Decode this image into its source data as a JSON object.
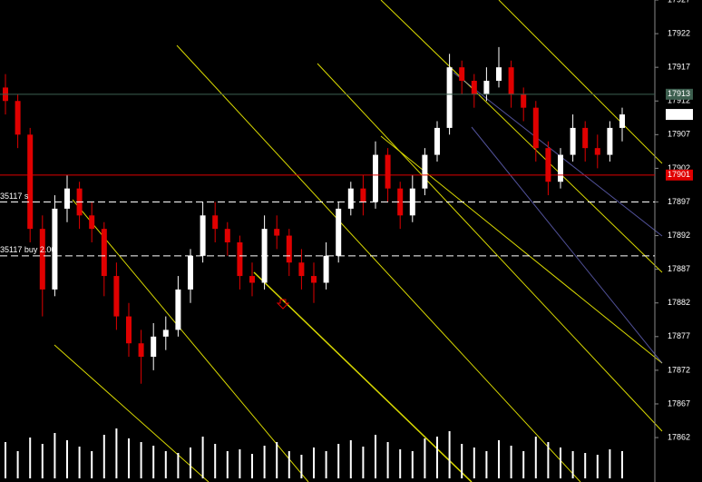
{
  "chart_data": {
    "type": "candlestick",
    "ylim": [
      17855.4,
      17927
    ],
    "yticks": [
      17862,
      17867,
      17872,
      17877,
      17882,
      17887,
      17892,
      17897,
      17902,
      17907,
      17912,
      17917,
      17922,
      17927
    ],
    "open": [
      17914,
      17912,
      17907,
      17893,
      17884,
      17896,
      17899,
      17895,
      17893,
      17886,
      17880,
      17876,
      17874,
      17877,
      17878,
      17884,
      17889,
      17895,
      17893,
      17891,
      17886,
      17885,
      17893,
      17892,
      17888,
      17886,
      17885,
      17889,
      17896,
      17899,
      17897,
      17904,
      17899,
      17895,
      17899,
      17904,
      17908,
      17917,
      17915,
      17913,
      17915,
      17917,
      17913,
      17911,
      17905,
      17900,
      17904,
      17908,
      17905,
      17904,
      17908
    ],
    "high": [
      17916,
      17913,
      17908,
      17895,
      17898,
      17901,
      17900,
      17897,
      17894,
      17888,
      17882,
      17878,
      17879,
      17880,
      17886,
      17890,
      17897,
      17897,
      17894,
      17892,
      17888,
      17895,
      17895,
      17893,
      17890,
      17888,
      17891,
      17897,
      17900,
      17901,
      17906,
      17905,
      17900,
      17901,
      17905,
      17909,
      17919,
      17918,
      17916,
      17917,
      17920,
      17918,
      17914,
      17912,
      17906,
      17905,
      17910,
      17909,
      17907,
      17909,
      17911
    ],
    "low": [
      17910,
      17905,
      17891,
      17880,
      17883,
      17894,
      17893,
      17891,
      17883,
      17878,
      17874,
      17870,
      17872,
      17875,
      17877,
      17882,
      17888,
      17891,
      17889,
      17884,
      17883,
      17884,
      17890,
      17886,
      17884,
      17882,
      17884,
      17888,
      17895,
      17895,
      17896,
      17897,
      17893,
      17894,
      17898,
      17903,
      17907,
      17913,
      17911,
      17912,
      17914,
      17911,
      17909,
      17903,
      17898,
      17899,
      17903,
      17903,
      17902,
      17903,
      17906
    ],
    "close": [
      17912,
      17907,
      17893,
      17884,
      17896,
      17899,
      17895,
      17893,
      17886,
      17880,
      17876,
      17874,
      17877,
      17878,
      17884,
      17889,
      17895,
      17893,
      17891,
      17886,
      17885,
      17893,
      17892,
      17888,
      17886,
      17885,
      17889,
      17896,
      17899,
      17897,
      17904,
      17899,
      17895,
      17899,
      17904,
      17908,
      17917,
      17915,
      17913,
      17915,
      17917,
      17913,
      17911,
      17905,
      17900,
      17904,
      17908,
      17905,
      17904,
      17908,
      17910
    ],
    "volume": [
      40,
      30,
      45,
      38,
      50,
      42,
      35,
      30,
      48,
      55,
      44,
      40,
      36,
      30,
      28,
      34,
      46,
      38,
      30,
      32,
      27,
      36,
      40,
      30,
      26,
      34,
      30,
      38,
      42,
      35,
      48,
      40,
      32,
      30,
      44,
      46,
      52,
      38,
      34,
      30,
      42,
      36,
      30,
      46,
      40,
      34,
      30,
      28,
      26,
      32,
      30
    ],
    "bull_color": "#ffffff",
    "bear_color": "#e00000",
    "volume_color": "#ffffff",
    "levels": [
      {
        "value": 17913,
        "color": "#3d5f4f",
        "line": true,
        "dash": false,
        "tag": true
      },
      {
        "value": 17910,
        "color": "#ffffff",
        "line": false,
        "dash": false,
        "tag": true
      },
      {
        "value": 17901,
        "color": "#e00000",
        "line": true,
        "dash": false,
        "tag": true
      },
      {
        "value": 17897,
        "color": "#ffffff",
        "line": true,
        "dash": true,
        "tag": false,
        "label": "35117 s"
      },
      {
        "value": 17889,
        "color": "#ffffff",
        "line": true,
        "dash": true,
        "tag": false,
        "label": "35117 buy 2.00"
      }
    ]
  }
}
